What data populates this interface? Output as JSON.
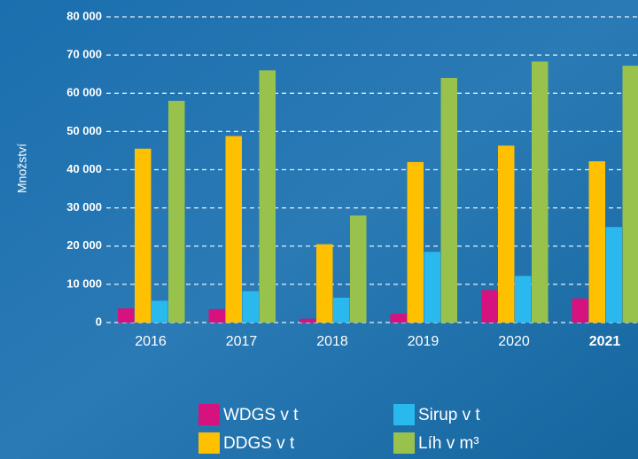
{
  "chart_data": {
    "type": "bar",
    "y_label": "Množství",
    "categories": [
      "2016",
      "2017",
      "2018",
      "2019",
      "2020",
      "2021"
    ],
    "series": [
      {
        "name": "WDGS v t",
        "color": "#d6127e",
        "values": [
          3700,
          3500,
          1000,
          2300,
          8500,
          6300
        ]
      },
      {
        "name": "DDGS v t",
        "color": "#ffc000",
        "values": [
          45500,
          48800,
          20500,
          42000,
          46300,
          42200
        ]
      },
      {
        "name": "Sirup v t",
        "color": "#29b9ef",
        "values": [
          5700,
          8200,
          6500,
          18500,
          12200,
          25000
        ]
      },
      {
        "name": "Líh v m³",
        "color": "#99c24d",
        "values": [
          58000,
          66000,
          28000,
          64000,
          68300,
          67200
        ]
      }
    ],
    "ylim": [
      0,
      80000
    ],
    "yticks": [
      0,
      {
        "value": 10000,
        "label": "10 000"
      },
      {
        "value": 20000,
        "label": "20 000"
      },
      {
        "value": 30000,
        "label": "30 000"
      },
      {
        "value": 40000,
        "label": "40 000"
      },
      {
        "value": 50000,
        "label": "50 000"
      },
      {
        "value": 60000,
        "label": "60 000"
      },
      {
        "value": 70000,
        "label": "70 000"
      },
      {
        "value": 80000,
        "label": "80 000"
      }
    ],
    "grid": true
  }
}
